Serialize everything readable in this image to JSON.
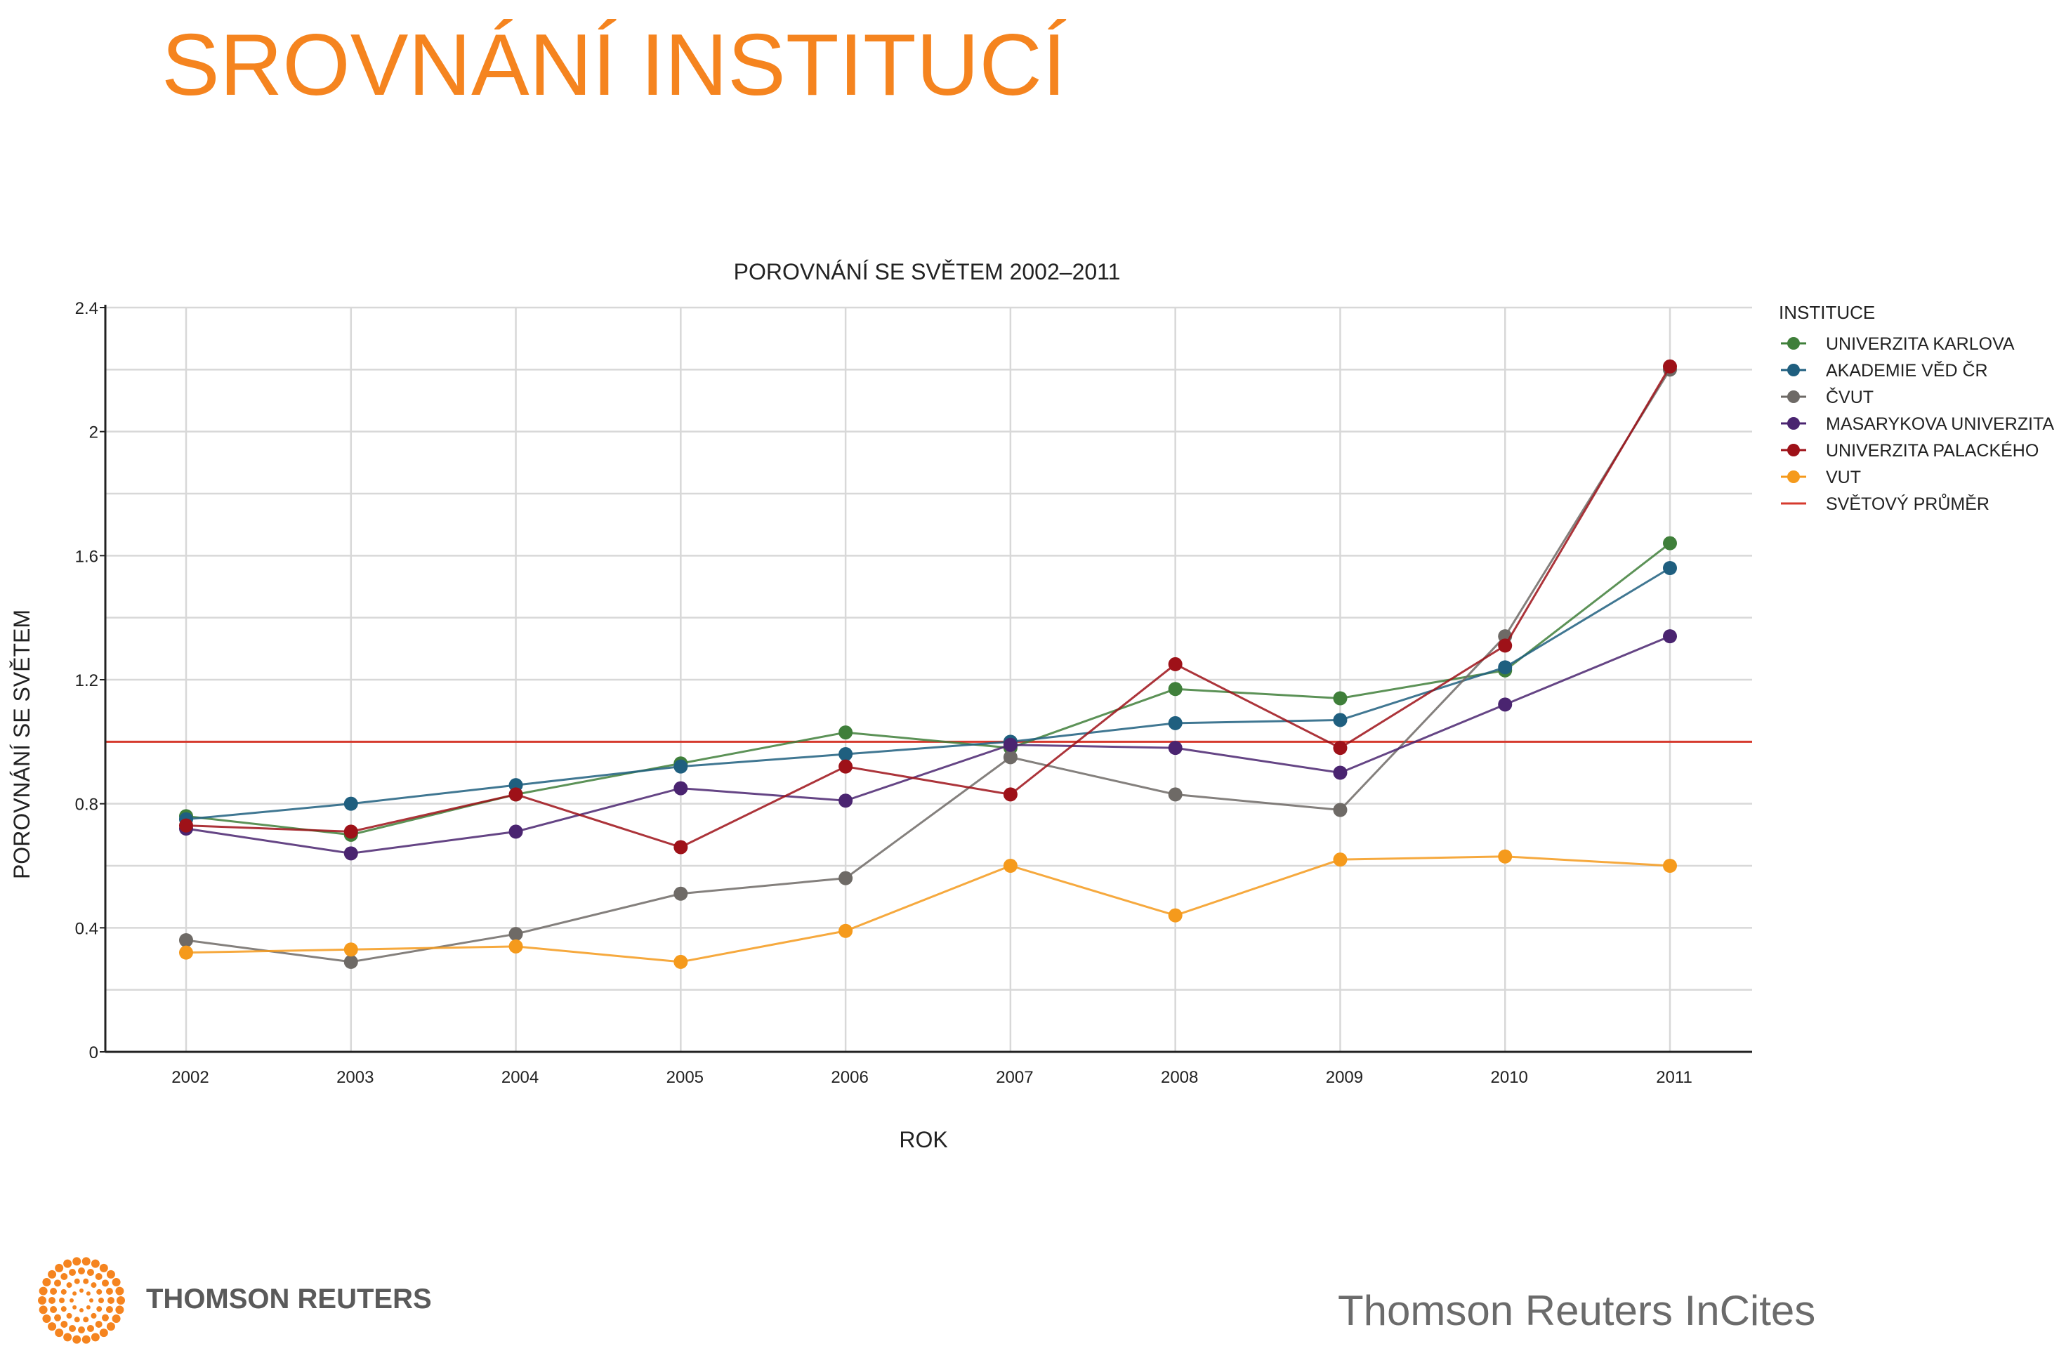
{
  "slide": {
    "title": "SROVNÁNÍ INSTITUCÍ",
    "title_color": "#f5841f"
  },
  "footer": {
    "logo_text": "THOMSON REUTERS",
    "logo_icon": "thomson-reuters-dot-sphere-icon",
    "logo_color": "#f5841f",
    "right_text": "Thomson Reuters InCites"
  },
  "chart_data": {
    "type": "line",
    "title": "POROVNÁNÍ SE SVĚTEM 2002–2011",
    "xlabel": "ROK",
    "ylabel": "POROVNÁNÍ SE SVĚTEM",
    "x": [
      "2002",
      "2003",
      "2004",
      "2005",
      "2006",
      "2007",
      "2008",
      "2009",
      "2010",
      "2011"
    ],
    "ylim": [
      0,
      2.4
    ],
    "yticks": [
      "0",
      "0.4",
      "0.8",
      "1.2",
      "1.6",
      "2",
      "2.4"
    ],
    "grid": true,
    "legend_title": "INSTITUCE",
    "legend_position": "right",
    "series": [
      {
        "name": "UNIVERZITA KARLOVA",
        "color": "#3f7f3a",
        "values": [
          0.76,
          0.7,
          0.83,
          0.93,
          1.03,
          0.98,
          1.17,
          1.14,
          1.23,
          1.64
        ]
      },
      {
        "name": "AKADEMIE VĚD ČR",
        "color": "#1f5f7f",
        "values": [
          0.75,
          0.8,
          0.86,
          0.92,
          0.96,
          1.0,
          1.06,
          1.07,
          1.24,
          1.56
        ]
      },
      {
        "name": "ČVUT",
        "color": "#6e6a66",
        "values": [
          0.36,
          0.29,
          0.38,
          0.51,
          0.56,
          0.95,
          0.83,
          0.78,
          1.34,
          2.2
        ]
      },
      {
        "name": "MASARYKOVA UNIVERZITA",
        "color": "#4a2470",
        "values": [
          0.72,
          0.64,
          0.71,
          0.85,
          0.81,
          0.99,
          0.98,
          0.9,
          1.12,
          1.34
        ]
      },
      {
        "name": "UNIVERZITA PALACKÉHO",
        "color": "#9e1118",
        "values": [
          0.73,
          0.71,
          0.83,
          0.66,
          0.92,
          0.83,
          1.25,
          0.98,
          1.31,
          2.21
        ]
      },
      {
        "name": "VUT",
        "color": "#f59a1c",
        "values": [
          0.32,
          0.33,
          0.34,
          0.29,
          0.39,
          0.6,
          0.44,
          0.62,
          0.63,
          0.6
        ]
      }
    ],
    "reference_line": {
      "name": "SVĚTOVÝ PRŮMĚR",
      "value": 1.0,
      "color": "#d63a2e"
    }
  }
}
